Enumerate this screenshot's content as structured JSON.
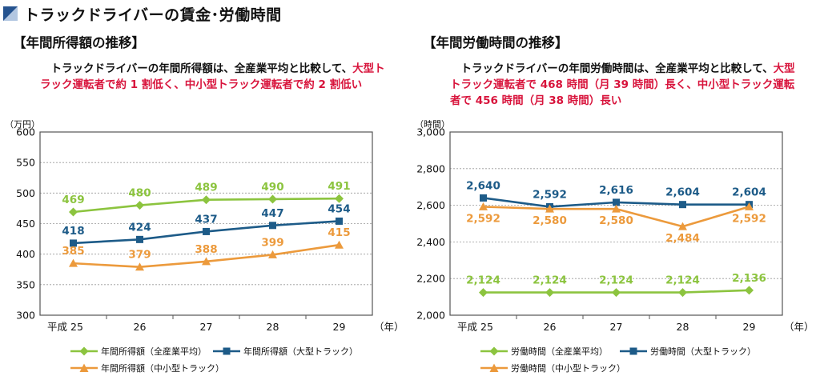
{
  "page": {
    "title": "トラックドライバーの賃金･労働時間",
    "colors": {
      "title_icon_dark": "#25538f",
      "title_icon_light": "#b3c7e1",
      "highlight": "#d8143c"
    }
  },
  "panels": [
    {
      "heading": "【年間所得額の推移】",
      "lead_plain": "　トラックドライバーの年間所得額は、全産業平均と比較して、",
      "lead_highlight": "大型トラック運転者で約 1 割低く、中小型トラック運転者で約 2 割低い",
      "legend": [
        {
          "label": "年間所得額（全産業平均）"
        },
        {
          "label": "年間所得額（大型トラック）"
        },
        {
          "label": "年間所得額（中小型トラック）"
        }
      ]
    },
    {
      "heading": "【年間労働時間の推移】",
      "lead_plain": "　トラックドライバーの年間労働時間は、全産業平均と比較して、",
      "lead_highlight": "大型トラック運転者で 468 時間（月 39 時間）長く、中小型トラック運転者で 456 時間（月 38 時間）長い",
      "legend": [
        {
          "label": "労働時間（全産業平均）"
        },
        {
          "label": "労働時間（大型トラック）"
        },
        {
          "label": "労働時間（中小型トラック）"
        }
      ]
    }
  ],
  "chart_data": [
    {
      "type": "line",
      "unit_label": "（万円）",
      "x_unit": "（年）",
      "categories": [
        "平成 25",
        "26",
        "27",
        "28",
        "29"
      ],
      "ylim": [
        300,
        600
      ],
      "yticks": [
        "300",
        "350",
        "400",
        "450",
        "500",
        "550",
        "600"
      ],
      "grid": true,
      "legend_position": "bottom",
      "series": [
        {
          "name": "年間所得額（全産業平均）",
          "values": [
            469,
            480,
            489,
            490,
            491
          ],
          "labels": [
            "469",
            "480",
            "489",
            "490",
            "491"
          ],
          "color": "#8cc43f",
          "marker": "diamond"
        },
        {
          "name": "年間所得額（大型トラック）",
          "values": [
            418,
            424,
            437,
            447,
            454
          ],
          "labels": [
            "418",
            "424",
            "437",
            "447",
            "454"
          ],
          "color": "#1d5b88",
          "marker": "square"
        },
        {
          "name": "年間所得額（中小型トラック）",
          "values": [
            385,
            379,
            388,
            399,
            415
          ],
          "labels": [
            "385",
            "379",
            "388",
            "399",
            "415"
          ],
          "color": "#ec9a3c",
          "marker": "triangle"
        }
      ]
    },
    {
      "type": "line",
      "unit_label": "（時間）",
      "x_unit": "（年）",
      "categories": [
        "平成 25",
        "26",
        "27",
        "28",
        "29"
      ],
      "ylim": [
        2000,
        3000
      ],
      "yticks": [
        "2,000",
        "2,200",
        "2,400",
        "2,600",
        "2,800",
        "3,000"
      ],
      "grid": true,
      "legend_position": "bottom",
      "series": [
        {
          "name": "労働時間（全産業平均）",
          "values": [
            2124,
            2124,
            2124,
            2124,
            2136
          ],
          "labels": [
            "2,124",
            "2,124",
            "2,124",
            "2,124",
            "2,136"
          ],
          "color": "#8cc43f",
          "marker": "diamond"
        },
        {
          "name": "労働時間（大型トラック）",
          "values": [
            2640,
            2592,
            2616,
            2604,
            2604
          ],
          "labels": [
            "2,640",
            "2,592",
            "2,616",
            "2,604",
            "2,604"
          ],
          "color": "#1d5b88",
          "marker": "square"
        },
        {
          "name": "労働時間（中小型トラック）",
          "values": [
            2592,
            2580,
            2580,
            2484,
            2592
          ],
          "labels": [
            "2,592",
            "2,580",
            "2,580",
            "2,484",
            "2,592"
          ],
          "color": "#ec9a3c",
          "marker": "triangle"
        }
      ]
    }
  ]
}
